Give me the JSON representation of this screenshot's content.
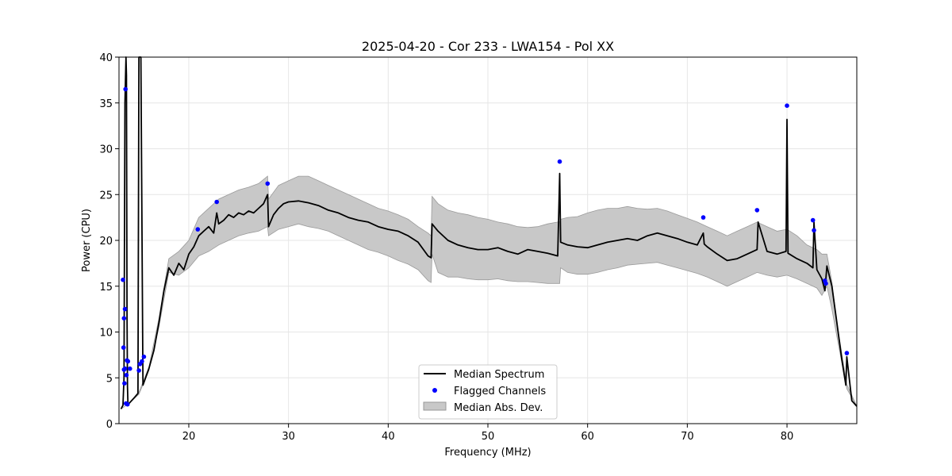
{
  "chart_data": {
    "type": "line",
    "title": "2025-04-20 - Cor 233 - LWA154 - Pol XX",
    "xlabel": "Frequency (MHz)",
    "ylabel": "Power (CPU)",
    "xlim": [
      13,
      87
    ],
    "ylim": [
      0,
      40
    ],
    "xticks": [
      20,
      30,
      40,
      50,
      60,
      70,
      80
    ],
    "yticks": [
      0,
      5,
      10,
      15,
      20,
      25,
      30,
      35,
      40
    ],
    "grid": true,
    "legend_position": "lower-center",
    "series": [
      {
        "name": "Median Spectrum",
        "kind": "line",
        "color": "#000000",
        "x": [
          13.2,
          13.4,
          13.5,
          13.6,
          13.7,
          13.75,
          13.8,
          13.85,
          13.9,
          14.0,
          14.5,
          14.9,
          15.0,
          15.2,
          15.4,
          15.6,
          16.0,
          16.5,
          17.0,
          17.5,
          18.0,
          18.5,
          19.0,
          19.5,
          20.0,
          20.5,
          21.0,
          21.5,
          22.0,
          22.5,
          22.8,
          23.0,
          23.5,
          24.0,
          24.5,
          25.0,
          25.5,
          26.0,
          26.5,
          27.0,
          27.5,
          27.9,
          28.0,
          28.5,
          29.0,
          29.5,
          30.0,
          31.0,
          32.0,
          33.0,
          34.0,
          35.0,
          36.0,
          37.0,
          38.0,
          39.0,
          40.0,
          41.0,
          42.0,
          43.0,
          44.0,
          44.3,
          44.4,
          45.0,
          46.0,
          47.0,
          48.0,
          49.0,
          50.0,
          51.0,
          52.0,
          53.0,
          54.0,
          55.0,
          56.0,
          57.0,
          57.2,
          57.3,
          58.0,
          59.0,
          60.0,
          61.0,
          62.0,
          63.0,
          64.0,
          65.0,
          66.0,
          67.0,
          68.0,
          69.0,
          70.0,
          71.0,
          71.6,
          71.7,
          72.0,
          73.0,
          74.0,
          75.0,
          76.0,
          77.0,
          77.1,
          78.0,
          79.0,
          79.9,
          80.0,
          80.1,
          81.0,
          82.0,
          82.6,
          82.7,
          83.0,
          83.5,
          83.8,
          84.0,
          84.5,
          85.0,
          85.5,
          85.9,
          86.0,
          86.5,
          87.0
        ],
        "y": [
          1.6,
          2.0,
          5.0,
          35.0,
          40.0,
          38.0,
          12.0,
          4.0,
          2.1,
          2.2,
          2.8,
          3.3,
          40.0,
          40.0,
          4.2,
          4.8,
          6.0,
          8.0,
          11.0,
          14.5,
          17.0,
          16.2,
          17.5,
          16.8,
          18.5,
          19.3,
          20.5,
          21.0,
          21.5,
          20.8,
          23.0,
          21.8,
          22.2,
          22.8,
          22.5,
          23.0,
          22.8,
          23.2,
          23.0,
          23.5,
          24.0,
          25.0,
          21.5,
          22.8,
          23.5,
          24.0,
          24.2,
          24.3,
          24.1,
          23.8,
          23.3,
          23.0,
          22.5,
          22.2,
          22.0,
          21.5,
          21.2,
          21.0,
          20.5,
          19.8,
          18.3,
          18.1,
          21.8,
          21.0,
          20.0,
          19.5,
          19.2,
          19.0,
          19.0,
          19.2,
          18.8,
          18.5,
          19.0,
          18.8,
          18.6,
          18.3,
          27.3,
          19.8,
          19.5,
          19.3,
          19.2,
          19.5,
          19.8,
          20.0,
          20.2,
          20.0,
          20.5,
          20.8,
          20.5,
          20.2,
          19.8,
          19.5,
          20.8,
          19.6,
          19.3,
          18.5,
          17.8,
          18.0,
          18.5,
          19.0,
          22.0,
          18.8,
          18.5,
          18.8,
          33.2,
          18.6,
          18.0,
          17.5,
          17.0,
          22.0,
          16.8,
          15.8,
          14.5,
          17.2,
          15.0,
          11.0,
          7.0,
          4.2,
          7.3,
          2.5,
          1.9
        ]
      },
      {
        "name": "Flagged Channels",
        "kind": "scatter",
        "color": "#0000ff",
        "x": [
          13.4,
          13.45,
          13.5,
          13.5,
          13.55,
          13.6,
          13.6,
          13.65,
          13.7,
          13.75,
          13.8,
          13.85,
          13.9,
          14.1,
          15.0,
          15.1,
          15.3,
          15.5,
          20.9,
          22.8,
          27.9,
          57.2,
          71.6,
          77.0,
          80.0,
          82.6,
          82.7,
          83.8,
          83.9,
          86.0
        ],
        "y": [
          15.7,
          8.3,
          11.5,
          5.9,
          4.4,
          12.5,
          6.0,
          36.5,
          2.2,
          5.3,
          6.9,
          2.1,
          6.8,
          6.0,
          5.8,
          6.5,
          6.8,
          7.3,
          21.2,
          24.2,
          26.2,
          28.6,
          22.5,
          23.3,
          34.7,
          22.2,
          21.1,
          15.6,
          15.3,
          7.7
        ]
      },
      {
        "name": "Median Abs. Dev.",
        "kind": "band",
        "color": "#c8c8c8",
        "x": [
          13.2,
          14.0,
          15.0,
          16.0,
          17.0,
          18.0,
          19.0,
          20.0,
          21.0,
          22.0,
          23.0,
          24.0,
          25.0,
          26.0,
          27.0,
          27.9,
          28.0,
          29.0,
          30.0,
          31.0,
          32.0,
          33.0,
          34.0,
          35.0,
          36.0,
          37.0,
          38.0,
          39.0,
          40.0,
          41.0,
          42.0,
          43.0,
          44.0,
          44.3,
          44.4,
          45.0,
          46.0,
          47.0,
          48.0,
          49.0,
          50.0,
          51.0,
          52.0,
          53.0,
          54.0,
          55.0,
          56.0,
          57.0,
          57.2,
          57.3,
          58.0,
          59.0,
          60.0,
          61.0,
          62.0,
          63.0,
          64.0,
          65.0,
          66.0,
          67.0,
          68.0,
          69.0,
          70.0,
          71.0,
          72.0,
          73.0,
          74.0,
          75.0,
          76.0,
          77.0,
          78.0,
          79.0,
          80.0,
          81.0,
          82.0,
          83.0,
          83.5,
          84.0,
          84.5,
          85.0,
          86.0,
          87.0
        ],
        "lower": [
          1.6,
          2.2,
          3.2,
          5.8,
          10.5,
          16.5,
          16.2,
          17.0,
          18.3,
          18.8,
          19.5,
          20.0,
          20.5,
          20.8,
          21.0,
          21.5,
          20.5,
          21.2,
          21.5,
          21.8,
          21.5,
          21.3,
          21.0,
          20.5,
          20.0,
          19.5,
          19.0,
          18.7,
          18.3,
          17.8,
          17.4,
          16.8,
          15.6,
          15.4,
          18.5,
          16.5,
          16.0,
          16.0,
          15.8,
          15.7,
          15.7,
          15.8,
          15.6,
          15.5,
          15.5,
          15.4,
          15.3,
          15.3,
          15.3,
          17.0,
          16.5,
          16.3,
          16.3,
          16.5,
          16.8,
          17.0,
          17.3,
          17.4,
          17.5,
          17.6,
          17.3,
          17.0,
          16.7,
          16.4,
          16.0,
          15.5,
          15.0,
          15.5,
          16.0,
          16.5,
          16.2,
          16.0,
          16.2,
          15.8,
          15.3,
          14.8,
          14.0,
          15.0,
          12.5,
          9.5,
          3.8,
          1.9
        ],
        "upper": [
          1.6,
          2.2,
          3.4,
          6.2,
          11.5,
          18.0,
          18.8,
          20.0,
          22.5,
          23.5,
          24.5,
          25.0,
          25.5,
          25.8,
          26.2,
          27.0,
          24.5,
          26.0,
          26.5,
          27.0,
          27.0,
          26.5,
          26.0,
          25.5,
          25.0,
          24.5,
          24.0,
          23.5,
          23.2,
          22.8,
          22.3,
          21.5,
          20.8,
          20.5,
          24.8,
          24.0,
          23.3,
          23.0,
          22.8,
          22.5,
          22.3,
          22.0,
          21.8,
          21.5,
          21.4,
          21.5,
          21.8,
          22.0,
          22.0,
          22.3,
          22.5,
          22.6,
          23.0,
          23.3,
          23.5,
          23.5,
          23.7,
          23.5,
          23.4,
          23.5,
          23.2,
          22.8,
          22.4,
          22.0,
          21.5,
          21.0,
          20.5,
          21.0,
          21.5,
          22.0,
          21.5,
          21.0,
          21.2,
          20.5,
          19.5,
          19.0,
          18.5,
          18.5,
          15.5,
          11.0,
          4.3,
          1.9
        ]
      }
    ]
  }
}
